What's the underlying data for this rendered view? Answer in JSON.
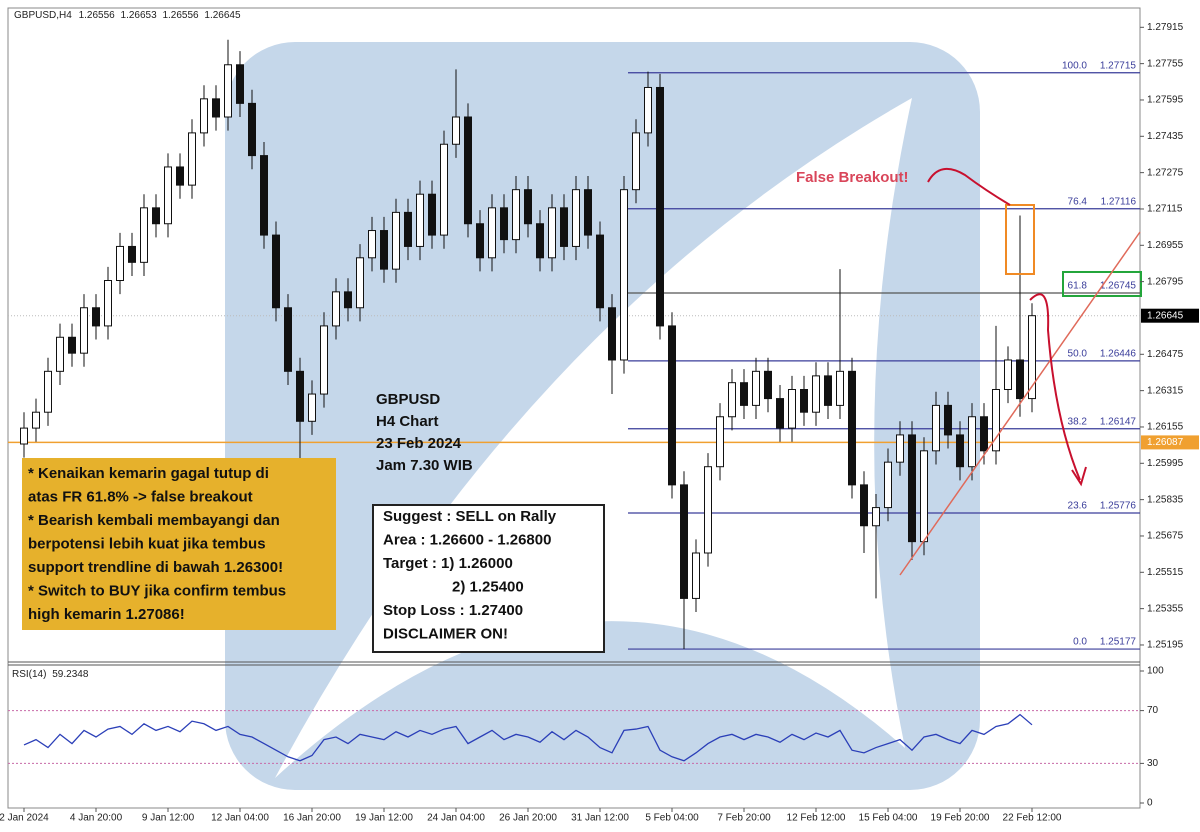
{
  "chart_data": {
    "type": "candlestick",
    "symbol": "GBPUSD,H4",
    "header_ohlc": [
      1.26556,
      1.26653,
      1.26556,
      1.26645
    ],
    "categories": [
      "2 Jan 2024",
      null,
      null,
      null,
      null,
      null,
      "4 Jan 20:00",
      null,
      null,
      null,
      null,
      null,
      "9 Jan 12:00",
      null,
      null,
      null,
      null,
      null,
      "12 Jan 04:00",
      null,
      null,
      null,
      null,
      null,
      "16 Jan 20:00",
      null,
      null,
      null,
      null,
      null,
      "19 Jan 12:00",
      null,
      null,
      null,
      null,
      null,
      "24 Jan 04:00",
      null,
      null,
      null,
      null,
      null,
      "26 Jan 20:00",
      null,
      null,
      null,
      null,
      null,
      "31 Jan 12:00",
      null,
      null,
      null,
      null,
      null,
      "5 Feb 04:00",
      null,
      null,
      null,
      null,
      null,
      "7 Feb 20:00",
      null,
      null,
      null,
      null,
      null,
      "12 Feb 12:00",
      null,
      null,
      null,
      null,
      null,
      "15 Feb 04:00",
      null,
      null,
      null,
      null,
      null,
      "19 Feb 20:00",
      null,
      null,
      null,
      null,
      null,
      "22 Feb 12:00"
    ],
    "open": [
      1.2608,
      1.2615,
      1.2622,
      1.264,
      1.2655,
      1.2648,
      1.2668,
      1.266,
      1.268,
      1.2695,
      1.2688,
      1.2712,
      1.2705,
      1.273,
      1.2722,
      1.2745,
      1.276,
      1.2752,
      1.2775,
      1.2758,
      1.2735,
      1.27,
      1.2668,
      1.264,
      1.2618,
      1.263,
      1.266,
      1.2675,
      1.2668,
      1.269,
      1.2702,
      1.2685,
      1.271,
      1.2695,
      1.2718,
      1.27,
      1.274,
      1.2752,
      1.2705,
      1.269,
      1.2712,
      1.2698,
      1.272,
      1.2705,
      1.269,
      1.2712,
      1.2695,
      1.272,
      1.27,
      1.2668,
      1.2645,
      1.272,
      1.2745,
      1.2765,
      1.266,
      1.259,
      1.254,
      1.256,
      1.2598,
      1.262,
      1.2635,
      1.2625,
      1.264,
      1.2628,
      1.2615,
      1.2632,
      1.2622,
      1.2638,
      1.2625,
      1.264,
      1.259,
      1.2572,
      1.258,
      1.26,
      1.2612,
      1.2565,
      1.2605,
      1.2625,
      1.2612,
      1.2598,
      1.262,
      1.2605,
      1.2632,
      1.2645,
      1.2628
    ],
    "high": [
      1.2622,
      1.2628,
      1.2646,
      1.2661,
      1.2661,
      1.2674,
      1.2674,
      1.2686,
      1.2701,
      1.2701,
      1.2718,
      1.2718,
      1.2736,
      1.2736,
      1.2751,
      1.2766,
      1.2766,
      1.2786,
      1.2781,
      1.2764,
      1.2741,
      1.2706,
      1.2674,
      1.2646,
      1.2636,
      1.2666,
      1.2681,
      1.2681,
      1.2696,
      1.2708,
      1.2708,
      1.2716,
      1.2716,
      1.2724,
      1.2724,
      1.2746,
      1.2773,
      1.2758,
      1.2711,
      1.2718,
      1.2718,
      1.2726,
      1.2726,
      1.2711,
      1.2718,
      1.2718,
      1.2726,
      1.2726,
      1.2706,
      1.2674,
      1.2726,
      1.2751,
      1.2772,
      1.2771,
      1.2666,
      1.2596,
      1.2566,
      1.2604,
      1.2626,
      1.2641,
      1.2641,
      1.2646,
      1.2646,
      1.2634,
      1.2638,
      1.2638,
      1.2644,
      1.2644,
      1.2685,
      1.2646,
      1.2596,
      1.2586,
      1.2606,
      1.2618,
      1.2618,
      1.2611,
      1.2631,
      1.2631,
      1.2618,
      1.2626,
      1.2626,
      1.266,
      1.2651,
      1.27086,
      1.267
    ],
    "low": [
      1.2602,
      1.2609,
      1.2616,
      1.2634,
      1.2642,
      1.2642,
      1.2654,
      1.2654,
      1.2674,
      1.2682,
      1.2682,
      1.2699,
      1.2699,
      1.2716,
      1.2716,
      1.2739,
      1.2746,
      1.2746,
      1.2752,
      1.2729,
      1.2694,
      1.2662,
      1.2634,
      1.26,
      1.2612,
      1.2624,
      1.2654,
      1.2662,
      1.2662,
      1.2684,
      1.2679,
      1.2679,
      1.2689,
      1.2689,
      1.2694,
      1.2694,
      1.2734,
      1.2699,
      1.2684,
      1.2684,
      1.2692,
      1.2692,
      1.2699,
      1.2684,
      1.2684,
      1.2689,
      1.2689,
      1.2694,
      1.2662,
      1.263,
      1.2639,
      1.2714,
      1.2739,
      1.2654,
      1.2584,
      1.25177,
      1.2534,
      1.2554,
      1.2592,
      1.2614,
      1.2619,
      1.2619,
      1.2622,
      1.2609,
      1.2609,
      1.2616,
      1.2616,
      1.2619,
      1.2619,
      1.2584,
      1.256,
      1.254,
      1.2574,
      1.2594,
      1.2557,
      1.2559,
      1.2599,
      1.2606,
      1.2592,
      1.2592,
      1.2599,
      1.2599,
      1.2626,
      1.262,
      1.2622
    ],
    "close": [
      1.2615,
      1.2622,
      1.264,
      1.2655,
      1.2648,
      1.2668,
      1.266,
      1.268,
      1.2695,
      1.2688,
      1.2712,
      1.2705,
      1.273,
      1.2722,
      1.2745,
      1.276,
      1.2752,
      1.2775,
      1.2758,
      1.2735,
      1.27,
      1.2668,
      1.264,
      1.2618,
      1.263,
      1.266,
      1.2675,
      1.2668,
      1.269,
      1.2702,
      1.2685,
      1.271,
      1.2695,
      1.2718,
      1.27,
      1.274,
      1.2752,
      1.2705,
      1.269,
      1.2712,
      1.2698,
      1.272,
      1.2705,
      1.269,
      1.2712,
      1.2695,
      1.272,
      1.27,
      1.2668,
      1.2645,
      1.272,
      1.2745,
      1.2765,
      1.266,
      1.259,
      1.254,
      1.256,
      1.2598,
      1.262,
      1.2635,
      1.2625,
      1.264,
      1.2628,
      1.2615,
      1.2632,
      1.2622,
      1.2638,
      1.2625,
      1.264,
      1.259,
      1.2572,
      1.258,
      1.26,
      1.2612,
      1.2565,
      1.2605,
      1.2625,
      1.2612,
      1.2598,
      1.262,
      1.2605,
      1.2632,
      1.2645,
      1.2628,
      1.26645
    ],
    "ylim": [
      1.2512,
      1.28
    ],
    "yticks": [
      1.27915,
      1.27755,
      1.27595,
      1.27435,
      1.27275,
      1.27115,
      1.26955,
      1.26795,
      1.26475,
      1.26315,
      1.26155,
      1.25995,
      1.25835,
      1.25675,
      1.25515,
      1.25355,
      1.25195
    ],
    "current_price": 1.26645,
    "support_price": 1.26087,
    "fib_levels": [
      {
        "label": "100.0",
        "price": 1.27715
      },
      {
        "label": "76.4",
        "price": 1.27116
      },
      {
        "label": "61.8",
        "price": 1.26745
      },
      {
        "label": "50.0",
        "price": 1.26446
      },
      {
        "label": "38.2",
        "price": 1.26147
      },
      {
        "label": "23.6",
        "price": 1.25776
      },
      {
        "label": "0.0",
        "price": 1.25177
      }
    ],
    "rsi": {
      "name": "RSI(14)",
      "current": 59.2348,
      "color": "#2b3fb8",
      "ylim": [
        0,
        100
      ],
      "yticks": [
        100,
        70,
        30,
        0
      ],
      "values": [
        44,
        48,
        42,
        52,
        45,
        55,
        50,
        56,
        58,
        52,
        60,
        55,
        58,
        54,
        62,
        60,
        55,
        58,
        52,
        50,
        45,
        40,
        35,
        32,
        36,
        48,
        50,
        45,
        52,
        50,
        48,
        54,
        50,
        55,
        52,
        56,
        58,
        45,
        50,
        55,
        48,
        52,
        50,
        46,
        54,
        48,
        55,
        50,
        42,
        38,
        55,
        56,
        58,
        40,
        35,
        32,
        38,
        45,
        50,
        52,
        48,
        52,
        50,
        46,
        52,
        48,
        53,
        50,
        55,
        40,
        38,
        42,
        45,
        48,
        40,
        50,
        52,
        48,
        45,
        55,
        52,
        58,
        60,
        67,
        59.2348
      ]
    },
    "annotations": {
      "false_breakout": "False Breakout!",
      "analysis": [
        "* Kenaikan kemarin gagal tutup di",
        "atas FR 61.8% -> false breakout",
        "* Bearish kembali membayangi dan",
        "berpotensi lebih kuat jika tembus",
        "support trendline di bawah 1.26300!",
        "* Switch to BUY jika confirm tembus",
        "high kemarin 1.27086!"
      ],
      "info": [
        "GBPUSD",
        "H4 Chart",
        "23 Feb 2024",
        "Jam 7.30 WIB"
      ],
      "suggest": [
        "Suggest : SELL on Rally",
        "Area : 1.26600 - 1.26800",
        "Target : 1) 1.26000",
        "2) 1.25400",
        "Stop Loss : 1.27400",
        "DISCLAIMER ON!"
      ]
    }
  }
}
